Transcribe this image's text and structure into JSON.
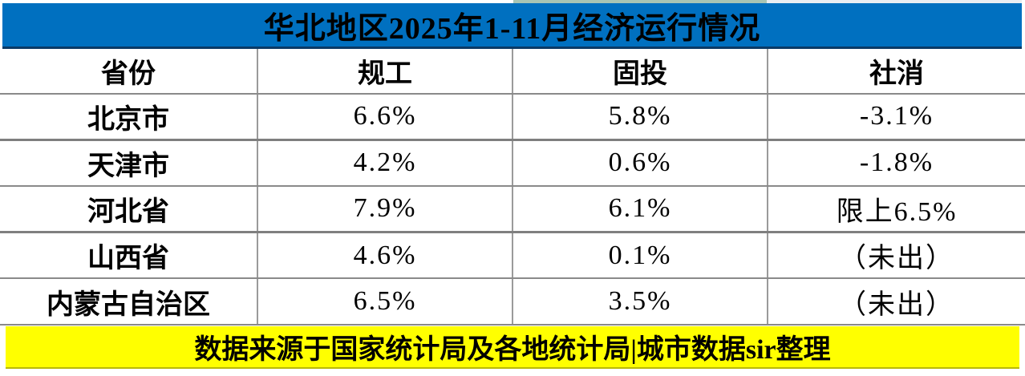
{
  "chart_data": {
    "type": "table",
    "title": "华北地区2025年1-11月经济运行情况",
    "columns": [
      "省份",
      "规工",
      "固投",
      "社消"
    ],
    "rows": [
      [
        "北京市",
        "6.6%",
        "5.8%",
        "-3.1%"
      ],
      [
        "天津市",
        "4.2%",
        "0.6%",
        "-1.8%"
      ],
      [
        "河北省",
        "7.9%",
        "6.1%",
        "限上6.5%"
      ],
      [
        "山西省",
        "4.6%",
        "0.1%",
        "（未出）"
      ],
      [
        "内蒙古自治区",
        "6.5%",
        "3.5%",
        "（未出）"
      ]
    ],
    "footer": "数据来源于国家统计局及各地统计局|城市数据sir整理"
  },
  "colors": {
    "title_background": "#0070C0",
    "title_bottom_border": "#0A3A66",
    "title_text": "#000000",
    "footer_background": "#FFFF00",
    "footer_text": "#000000",
    "grid_line": "#8A8A8A",
    "column_divider": "#9A9A9A",
    "top_strip_green": "#A8C5B4"
  }
}
